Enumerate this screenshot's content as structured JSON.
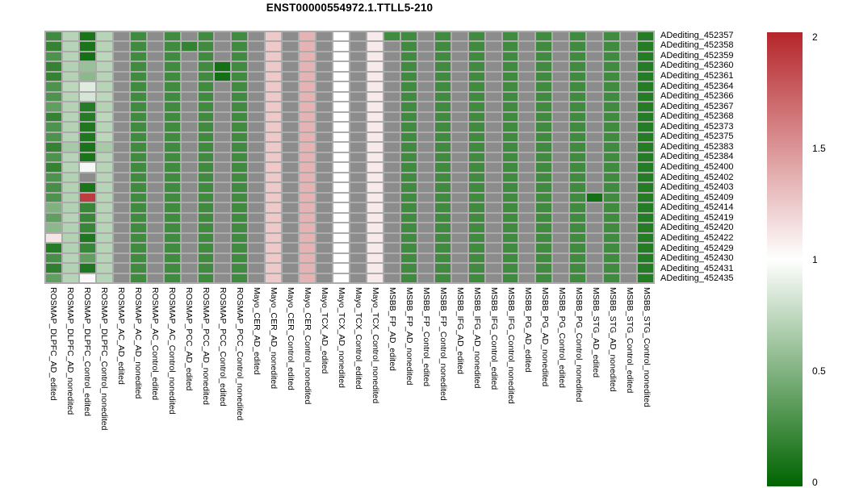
{
  "title": "ENST00000554972.1.TTLL5-210",
  "colors": {
    "page_bg": "#ffffff",
    "grid_gap": "#acacac",
    "na_cell": "#8c8c8c",
    "text": "#000000"
  },
  "colorbar": {
    "tick_labels": [
      "2",
      "1.5",
      "1",
      "0.5",
      "0"
    ],
    "min": 0,
    "max": 2
  },
  "chart_data": {
    "type": "heatmap",
    "title": "ENST00000554972.1.TTLL5-210",
    "legend_position": "right",
    "scale": {
      "min": 0,
      "mid_value": 1,
      "max": 2,
      "low": "#006400",
      "mid": "#ffffff",
      "high": "#b5262a",
      "na_color": "#8c8c8c"
    },
    "rows": [
      "ADediting_452357",
      "ADediting_452358",
      "ADediting_452359",
      "ADediting_452360",
      "ADediting_452361",
      "ADediting_452364",
      "ADediting_452366",
      "ADediting_452367",
      "ADediting_452368",
      "ADediting_452373",
      "ADediting_452375",
      "ADediting_452383",
      "ADediting_452384",
      "ADediting_452400",
      "ADediting_452402",
      "ADediting_452403",
      "ADediting_452409",
      "ADediting_452414",
      "ADediting_452419",
      "ADediting_452420",
      "ADediting_452422",
      "ADediting_452429",
      "ADediting_452430",
      "ADediting_452431",
      "ADediting_452435"
    ],
    "columns": [
      "ROSMAP_DLPFC_AD_edited",
      "ROSMAP_DLPFC_AD_nonedited",
      "ROSMAP_DLPFC_Control_edited",
      "ROSMAP_DLPFC_Control_nonedited",
      "ROSMAP_AC_AD_edited",
      "ROSMAP_AC_AD_nonedited",
      "ROSMAP_AC_Control_edited",
      "ROSMAP_AC_Control_nonedited",
      "ROSMAP_PCC_AD_edited",
      "ROSMAP_PCC_AD_nonedited",
      "ROSMAP_PCC_Control_edited",
      "ROSMAP_PCC_Control_nonedited",
      "Mayo_CER_AD_edited",
      "Mayo_CER_AD_nonedited",
      "Mayo_CER_Control_edited",
      "Mayo_CER_Control_nonedited",
      "Mayo_TCX_AD_edited",
      "Mayo_TCX_AD_nonedited",
      "Mayo_TCX_Control_edited",
      "Mayo_TCX_Control_nonedited",
      "MSBB_FP_AD_edited",
      "MSBB_FP_AD_nonedited",
      "MSBB_FP_Control_edited",
      "MSBB_FP_Control_nonedited",
      "MSBB_IFG_AD_edited",
      "MSBB_IFG_AD_nonedited",
      "MSBB_IFG_Control_edited",
      "MSBB_IFG_Control_nonedited",
      "MSBB_PG_AD_edited",
      "MSBB_PG_AD_nonedited",
      "MSBB_PG_Control_edited",
      "MSBB_PG_Control_nonedited",
      "MSBB_STG_AD_edited",
      "MSBB_STG_AD_nonedited",
      "MSBB_STG_Control_edited",
      "MSBB_STG_Control_nonedited"
    ],
    "values": [
      [
        0.25,
        0.72,
        0.1,
        0.72,
        null,
        0.25,
        null,
        0.25,
        null,
        0.25,
        null,
        0.25,
        null,
        1.25,
        null,
        1.35,
        null,
        1,
        null,
        1.1,
        0.25,
        0.25,
        null,
        0.25,
        null,
        0.25,
        null,
        0.25,
        null,
        0.25,
        null,
        0.25,
        null,
        0.25,
        null,
        0.15
      ],
      [
        0.2,
        0.72,
        0.1,
        0.72,
        null,
        0.25,
        null,
        0.25,
        0.2,
        0.25,
        null,
        0.25,
        null,
        1.25,
        null,
        1.35,
        null,
        1,
        null,
        1.1,
        null,
        0.25,
        null,
        0.25,
        null,
        0.25,
        null,
        0.25,
        null,
        0.25,
        null,
        0.25,
        null,
        0.25,
        null,
        0.15
      ],
      [
        0.3,
        0.72,
        0.08,
        0.74,
        null,
        0.25,
        null,
        0.25,
        null,
        0.25,
        null,
        0.25,
        null,
        1.25,
        null,
        1.35,
        null,
        1,
        null,
        1.1,
        null,
        0.25,
        null,
        0.25,
        null,
        0.25,
        null,
        0.25,
        null,
        0.25,
        null,
        0.25,
        null,
        0.25,
        null,
        0.15
      ],
      [
        0.2,
        0.7,
        0.6,
        0.72,
        null,
        0.25,
        null,
        0.25,
        null,
        0.25,
        0.08,
        0.25,
        null,
        1.25,
        null,
        1.35,
        null,
        1,
        null,
        1.1,
        null,
        0.25,
        null,
        0.25,
        null,
        0.25,
        null,
        0.25,
        null,
        0.25,
        null,
        0.25,
        null,
        0.25,
        null,
        0.15
      ],
      [
        0.2,
        0.71,
        0.55,
        0.72,
        null,
        0.25,
        null,
        0.25,
        null,
        0.25,
        0.08,
        0.25,
        null,
        1.25,
        null,
        1.35,
        null,
        1,
        null,
        1.1,
        null,
        0.25,
        null,
        0.25,
        null,
        0.25,
        null,
        0.25,
        null,
        0.25,
        null,
        0.25,
        null,
        0.25,
        null,
        0.15
      ],
      [
        0.3,
        0.74,
        0.88,
        0.72,
        null,
        0.25,
        null,
        0.25,
        null,
        0.25,
        null,
        0.25,
        null,
        1.25,
        null,
        1.35,
        null,
        1,
        null,
        1.1,
        null,
        0.25,
        null,
        0.25,
        null,
        0.25,
        null,
        0.25,
        null,
        0.25,
        null,
        0.25,
        null,
        0.25,
        null,
        0.15
      ],
      [
        0.3,
        0.72,
        0.84,
        0.74,
        null,
        0.25,
        null,
        0.25,
        null,
        0.25,
        null,
        0.25,
        null,
        1.25,
        null,
        1.35,
        null,
        1,
        null,
        1.1,
        null,
        0.25,
        null,
        0.25,
        null,
        0.25,
        null,
        0.25,
        null,
        0.25,
        null,
        0.25,
        null,
        0.25,
        null,
        0.15
      ],
      [
        0.38,
        0.71,
        0.15,
        0.71,
        null,
        0.25,
        null,
        0.25,
        null,
        0.25,
        null,
        0.25,
        null,
        1.25,
        null,
        1.35,
        null,
        1,
        null,
        1.1,
        null,
        0.25,
        null,
        0.25,
        null,
        0.25,
        null,
        0.25,
        null,
        0.25,
        null,
        0.25,
        null,
        0.25,
        null,
        0.15
      ],
      [
        0.2,
        0.72,
        0.15,
        0.74,
        null,
        0.25,
        null,
        0.25,
        null,
        0.25,
        null,
        0.25,
        null,
        1.25,
        null,
        1.35,
        null,
        1,
        null,
        1.1,
        null,
        0.25,
        null,
        0.25,
        null,
        0.25,
        null,
        0.25,
        null,
        0.25,
        null,
        0.25,
        null,
        0.25,
        null,
        0.15
      ],
      [
        0.3,
        0.71,
        0.12,
        0.72,
        null,
        0.25,
        null,
        0.25,
        null,
        0.25,
        null,
        0.25,
        null,
        1.25,
        null,
        1.35,
        null,
        1,
        null,
        1.1,
        null,
        0.25,
        null,
        0.25,
        null,
        0.25,
        null,
        0.25,
        null,
        0.25,
        null,
        0.25,
        null,
        0.25,
        null,
        0.15
      ],
      [
        0.3,
        0.72,
        0.12,
        0.74,
        null,
        0.25,
        null,
        0.25,
        null,
        0.25,
        null,
        0.25,
        null,
        1.25,
        null,
        1.35,
        null,
        1,
        null,
        1.1,
        null,
        0.25,
        null,
        0.25,
        null,
        0.25,
        null,
        0.25,
        null,
        0.25,
        null,
        0.25,
        null,
        0.25,
        null,
        0.15
      ],
      [
        0.2,
        0.66,
        0.1,
        0.66,
        null,
        0.25,
        null,
        0.25,
        null,
        0.25,
        null,
        0.25,
        null,
        1.25,
        null,
        1.35,
        null,
        1,
        null,
        1.1,
        null,
        0.25,
        null,
        0.25,
        null,
        0.25,
        null,
        0.25,
        null,
        0.25,
        null,
        0.25,
        null,
        0.25,
        null,
        0.15
      ],
      [
        0.3,
        0.72,
        0.1,
        0.72,
        null,
        0.25,
        null,
        0.25,
        null,
        0.25,
        null,
        0.25,
        null,
        1.25,
        null,
        1.35,
        null,
        1,
        null,
        1.1,
        null,
        0.25,
        null,
        0.25,
        null,
        0.25,
        null,
        0.25,
        null,
        0.25,
        null,
        0.25,
        null,
        0.25,
        null,
        0.15
      ],
      [
        0.2,
        0.72,
        0.96,
        0.72,
        null,
        0.25,
        null,
        0.25,
        null,
        0.25,
        null,
        0.25,
        null,
        1.25,
        null,
        1.35,
        null,
        1,
        null,
        1.1,
        null,
        0.25,
        null,
        0.25,
        null,
        0.25,
        null,
        0.25,
        null,
        0.25,
        null,
        0.25,
        null,
        0.25,
        null,
        0.15
      ],
      [
        0.3,
        0.7,
        null,
        0.72,
        null,
        0.25,
        null,
        0.25,
        null,
        0.25,
        null,
        0.25,
        null,
        1.25,
        null,
        1.35,
        null,
        1,
        null,
        1.1,
        null,
        0.25,
        null,
        0.25,
        null,
        0.25,
        null,
        0.25,
        null,
        0.25,
        null,
        0.25,
        null,
        0.25,
        null,
        0.15
      ],
      [
        0.28,
        0.7,
        0.1,
        0.72,
        null,
        0.25,
        null,
        0.25,
        null,
        0.25,
        null,
        0.25,
        null,
        1.25,
        null,
        1.35,
        null,
        1,
        null,
        1.1,
        null,
        0.25,
        null,
        0.25,
        null,
        0.25,
        null,
        0.25,
        null,
        0.25,
        null,
        0.25,
        null,
        0.25,
        null,
        0.15
      ],
      [
        0.3,
        0.7,
        1.9,
        0.72,
        null,
        0.25,
        null,
        0.25,
        null,
        0.25,
        null,
        0.25,
        null,
        1.25,
        null,
        1.35,
        null,
        1,
        null,
        1.1,
        null,
        0.25,
        null,
        0.25,
        null,
        0.25,
        null,
        0.25,
        null,
        0.25,
        null,
        0.25,
        0.08,
        0.25,
        null,
        0.15
      ],
      [
        0.5,
        0.7,
        0.22,
        0.72,
        null,
        0.25,
        null,
        0.25,
        null,
        0.25,
        null,
        0.25,
        null,
        1.25,
        null,
        1.35,
        null,
        1,
        null,
        1.1,
        null,
        0.25,
        null,
        0.25,
        null,
        0.25,
        null,
        0.25,
        null,
        0.25,
        null,
        0.25,
        null,
        0.25,
        null,
        0.15
      ],
      [
        0.38,
        0.72,
        0.22,
        0.72,
        null,
        0.25,
        null,
        0.25,
        null,
        0.25,
        null,
        0.25,
        null,
        1.25,
        null,
        1.35,
        null,
        1,
        null,
        1.1,
        null,
        0.25,
        null,
        0.25,
        null,
        0.25,
        null,
        0.25,
        null,
        0.25,
        null,
        0.25,
        null,
        0.25,
        null,
        0.15
      ],
      [
        0.55,
        0.7,
        0.22,
        0.72,
        null,
        0.25,
        null,
        0.25,
        null,
        0.25,
        null,
        0.25,
        null,
        1.25,
        null,
        1.35,
        null,
        1,
        null,
        1.1,
        null,
        0.25,
        null,
        0.25,
        null,
        0.25,
        null,
        0.25,
        null,
        0.25,
        null,
        0.25,
        null,
        0.25,
        null,
        0.15
      ],
      [
        1.12,
        0.7,
        0.12,
        0.72,
        null,
        0.25,
        null,
        0.25,
        null,
        0.25,
        null,
        0.25,
        null,
        1.25,
        null,
        1.35,
        null,
        1,
        null,
        1.1,
        null,
        0.25,
        null,
        0.25,
        null,
        0.25,
        null,
        0.25,
        null,
        0.25,
        null,
        0.25,
        null,
        0.25,
        null,
        0.15
      ],
      [
        0.15,
        0.7,
        0.22,
        0.72,
        null,
        0.25,
        null,
        0.25,
        null,
        0.25,
        null,
        0.25,
        null,
        1.25,
        null,
        1.35,
        null,
        1,
        null,
        1.1,
        null,
        0.25,
        null,
        0.25,
        null,
        0.25,
        null,
        0.25,
        null,
        0.25,
        null,
        0.25,
        null,
        0.25,
        null,
        0.15
      ],
      [
        0.28,
        0.72,
        0.38,
        0.72,
        null,
        0.25,
        null,
        0.25,
        null,
        0.25,
        null,
        0.25,
        null,
        1.25,
        null,
        1.35,
        null,
        1,
        null,
        1.1,
        null,
        0.25,
        null,
        0.25,
        null,
        0.25,
        null,
        0.25,
        null,
        0.25,
        null,
        0.25,
        null,
        0.25,
        null,
        0.15
      ],
      [
        0.18,
        0.7,
        0.12,
        0.72,
        null,
        0.25,
        null,
        0.25,
        null,
        0.25,
        null,
        0.25,
        null,
        1.25,
        null,
        1.35,
        null,
        1,
        null,
        1.1,
        null,
        0.25,
        null,
        0.25,
        null,
        0.25,
        null,
        0.25,
        null,
        0.25,
        null,
        0.25,
        null,
        0.25,
        null,
        0.15
      ],
      [
        0.38,
        0.72,
        1.03,
        0.72,
        null,
        0.25,
        null,
        0.25,
        null,
        0.25,
        null,
        0.25,
        null,
        1.25,
        null,
        1.35,
        null,
        1,
        null,
        1.1,
        null,
        0.25,
        null,
        0.25,
        null,
        0.25,
        null,
        0.25,
        null,
        0.25,
        null,
        0.25,
        null,
        0.25,
        null,
        0.15
      ]
    ]
  }
}
